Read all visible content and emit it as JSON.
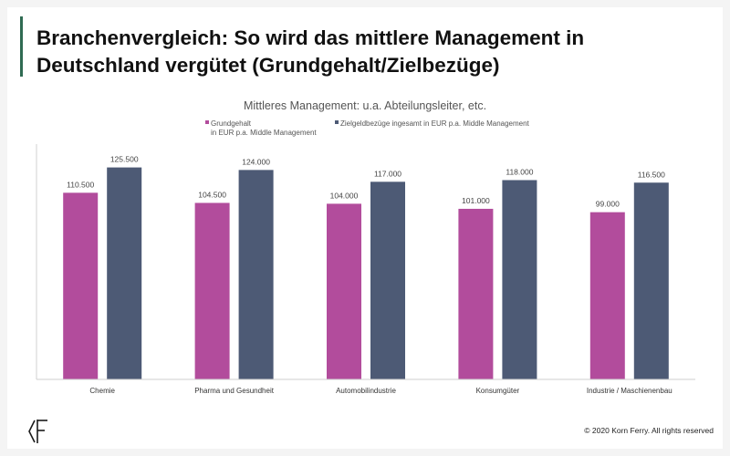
{
  "slide": {
    "title_line1": "Branchenvergleich: So wird das mittlere Management in",
    "title_line2": "Deutschland vergütet (Grundgehalt/Zielbezüge)",
    "copyright": "© 2020 Korn Ferry. All rights reserved",
    "logo_icon": "korn-ferry-logo",
    "accent_color": "#2f6b52"
  },
  "chart_data": {
    "type": "bar",
    "title": "Mittleres Management: u.a. Abteilungsleiter, etc.",
    "xlabel": "",
    "ylabel": "",
    "ylim": [
      0,
      135000
    ],
    "grid": false,
    "legend_position": "top-left",
    "categories": [
      "Chemie",
      "Pharma und Gesundheit",
      "Automobilindustrie",
      "Konsumgüter",
      "Industrie / Maschienenbau"
    ],
    "series": [
      {
        "name_lines": [
          "Grundgehalt",
          "in EUR p.a. Middle Management"
        ],
        "color": "#b24c9c",
        "values": [
          110500,
          104500,
          104000,
          101000,
          99000
        ],
        "labels": [
          "110.500",
          "104.500",
          "104.000",
          "101.000",
          "99.000"
        ]
      },
      {
        "name_lines": [
          "Zielgeldbezüge ingesamt in EUR p.a. Middle Management"
        ],
        "color": "#4d5a75",
        "values": [
          125500,
          124000,
          117000,
          118000,
          116500
        ],
        "labels": [
          "125.500",
          "124.000",
          "117.000",
          "118.000",
          "116.500"
        ]
      }
    ]
  }
}
